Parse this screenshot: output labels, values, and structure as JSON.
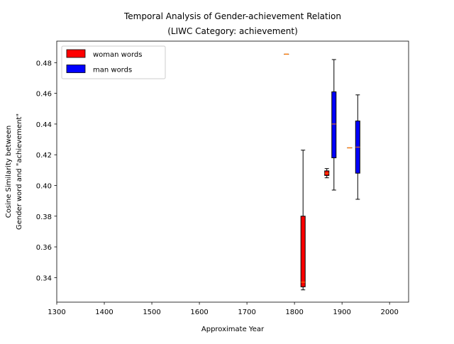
{
  "chart_data": {
    "type": "box",
    "title": "Temporal Analysis of Gender-achievement Relation",
    "subtitle": "(LIWC Category: achievement)",
    "xlabel": "Approximate Year",
    "ylabel_line1": "Cosine Similarity between",
    "ylabel_line2": "Gender word and \"achievement\"",
    "xlim": [
      1300,
      2040
    ],
    "ylim": [
      0.324,
      0.494
    ],
    "x_ticks": [
      1300,
      1400,
      1500,
      1600,
      1700,
      1800,
      1900,
      2000
    ],
    "y_ticks": [
      0.34,
      0.36,
      0.38,
      0.4,
      0.42,
      0.44,
      0.46,
      0.48
    ],
    "x_tick_labels": [
      "1300",
      "1400",
      "1500",
      "1600",
      "1700",
      "1800",
      "1900",
      "2000"
    ],
    "y_tick_labels": [
      "0.34",
      "0.36",
      "0.38",
      "0.40",
      "0.42",
      "0.44",
      "0.46",
      "0.48"
    ],
    "legend": {
      "placement": "top-left",
      "entries": [
        {
          "label": "woman words",
          "color": "#ff0000"
        },
        {
          "label": "man words",
          "color": "#0000ff"
        }
      ]
    },
    "median_color": "#ff7f0e",
    "series": [
      {
        "name": "woman words",
        "color": "#ff0000",
        "boxes": [
          {
            "x": 1783,
            "whisker_low": 0.4855,
            "q1": 0.4855,
            "median": 0.4855,
            "q3": 0.4855,
            "whisker_high": 0.4855
          },
          {
            "x": 1818,
            "whisker_low": 0.332,
            "q1": 0.334,
            "median": 0.337,
            "q3": 0.38,
            "whisker_high": 0.423
          },
          {
            "x": 1868,
            "whisker_low": 0.405,
            "q1": 0.4065,
            "median": 0.408,
            "q3": 0.4095,
            "whisker_high": 0.411
          }
        ]
      },
      {
        "name": "man words",
        "color": "#0000ff",
        "boxes": [
          {
            "x": 1883,
            "whisker_low": 0.397,
            "q1": 0.418,
            "median": 0.44,
            "q3": 0.461,
            "whisker_high": 0.482
          },
          {
            "x": 1916,
            "whisker_low": 0.4245,
            "q1": 0.4245,
            "median": 0.4245,
            "q3": 0.4245,
            "whisker_high": 0.4245
          },
          {
            "x": 1933,
            "whisker_low": 0.391,
            "q1": 0.408,
            "median": 0.425,
            "q3": 0.442,
            "whisker_high": 0.459
          }
        ]
      }
    ]
  }
}
